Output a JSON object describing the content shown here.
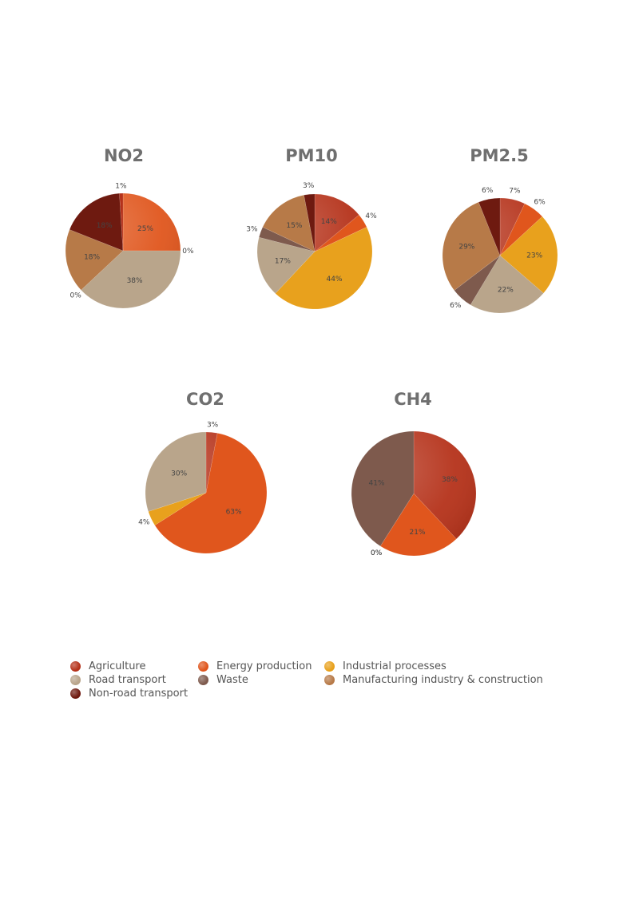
{
  "categories": [
    {
      "name": "Agriculture",
      "color": "#b5321a"
    },
    {
      "name": "Energy production",
      "color": "#e0561d"
    },
    {
      "name": "Industrial processes",
      "color": "#e8a11d"
    },
    {
      "name": "Road transport",
      "color": "#b9a58b"
    },
    {
      "name": "Waste",
      "color": "#7e5a4d"
    },
    {
      "name": "Manufacturing industry & construction",
      "color": "#b77a48"
    },
    {
      "name": "Non-road transport",
      "color": "#6e1a10"
    }
  ],
  "chart_data": [
    {
      "type": "pie",
      "title": "NO2",
      "slices": [
        {
          "category": "Agriculture",
          "value": 0,
          "label": ""
        },
        {
          "category": "Energy production",
          "value": 25,
          "label": "25%"
        },
        {
          "category": "Industrial processes",
          "value": 0,
          "label": "0%"
        },
        {
          "category": "Road transport",
          "value": 38,
          "label": "38%"
        },
        {
          "category": "Waste",
          "value": 0,
          "label": "0%"
        },
        {
          "category": "Manufacturing industry & construction",
          "value": 18,
          "label": "18%"
        },
        {
          "category": "Non-road transport",
          "value": 18,
          "label": "18%"
        },
        {
          "category": "Agriculture",
          "value": 1,
          "label": "1%"
        }
      ]
    },
    {
      "type": "pie",
      "title": "PM10",
      "slices": [
        {
          "category": "Agriculture",
          "value": 14,
          "label": "14%"
        },
        {
          "category": "Energy production",
          "value": 4,
          "label": "4%"
        },
        {
          "category": "Industrial processes",
          "value": 44,
          "label": "44%"
        },
        {
          "category": "Road transport",
          "value": 17,
          "label": "17%"
        },
        {
          "category": "Waste",
          "value": 3,
          "label": "3%"
        },
        {
          "category": "Manufacturing industry & construction",
          "value": 15,
          "label": "15%"
        },
        {
          "category": "Non-road transport",
          "value": 3,
          "label": "3%"
        }
      ]
    },
    {
      "type": "pie",
      "title": "PM2.5",
      "slices": [
        {
          "category": "Agriculture",
          "value": 7,
          "label": "7%"
        },
        {
          "category": "Energy production",
          "value": 6,
          "label": "6%"
        },
        {
          "category": "Industrial processes",
          "value": 23,
          "label": "23%"
        },
        {
          "category": "Road transport",
          "value": 22,
          "label": "22%"
        },
        {
          "category": "Waste",
          "value": 6,
          "label": "6%"
        },
        {
          "category": "Manufacturing industry & construction",
          "value": 29,
          "label": "29%"
        },
        {
          "category": "Non-road transport",
          "value": 6,
          "label": "6%"
        }
      ]
    },
    {
      "type": "pie",
      "title": "CO2",
      "slices": [
        {
          "category": "Agriculture",
          "value": 3,
          "label": "3%"
        },
        {
          "category": "Energy production",
          "value": 63,
          "label": "63%"
        },
        {
          "category": "Industrial processes",
          "value": 4,
          "label": "4%"
        },
        {
          "category": "Road transport",
          "value": 30,
          "label": "30%"
        }
      ]
    },
    {
      "type": "pie",
      "title": "CH4",
      "slices": [
        {
          "category": "Agriculture",
          "value": 38,
          "label": "38%"
        },
        {
          "category": "Energy production",
          "value": 21,
          "label": "21%"
        },
        {
          "category": "Industrial processes",
          "value": 0,
          "label": "0%"
        },
        {
          "category": "Road transport",
          "value": 0,
          "label": "0%"
        },
        {
          "category": "Waste",
          "value": 41,
          "label": "41%"
        }
      ]
    }
  ]
}
